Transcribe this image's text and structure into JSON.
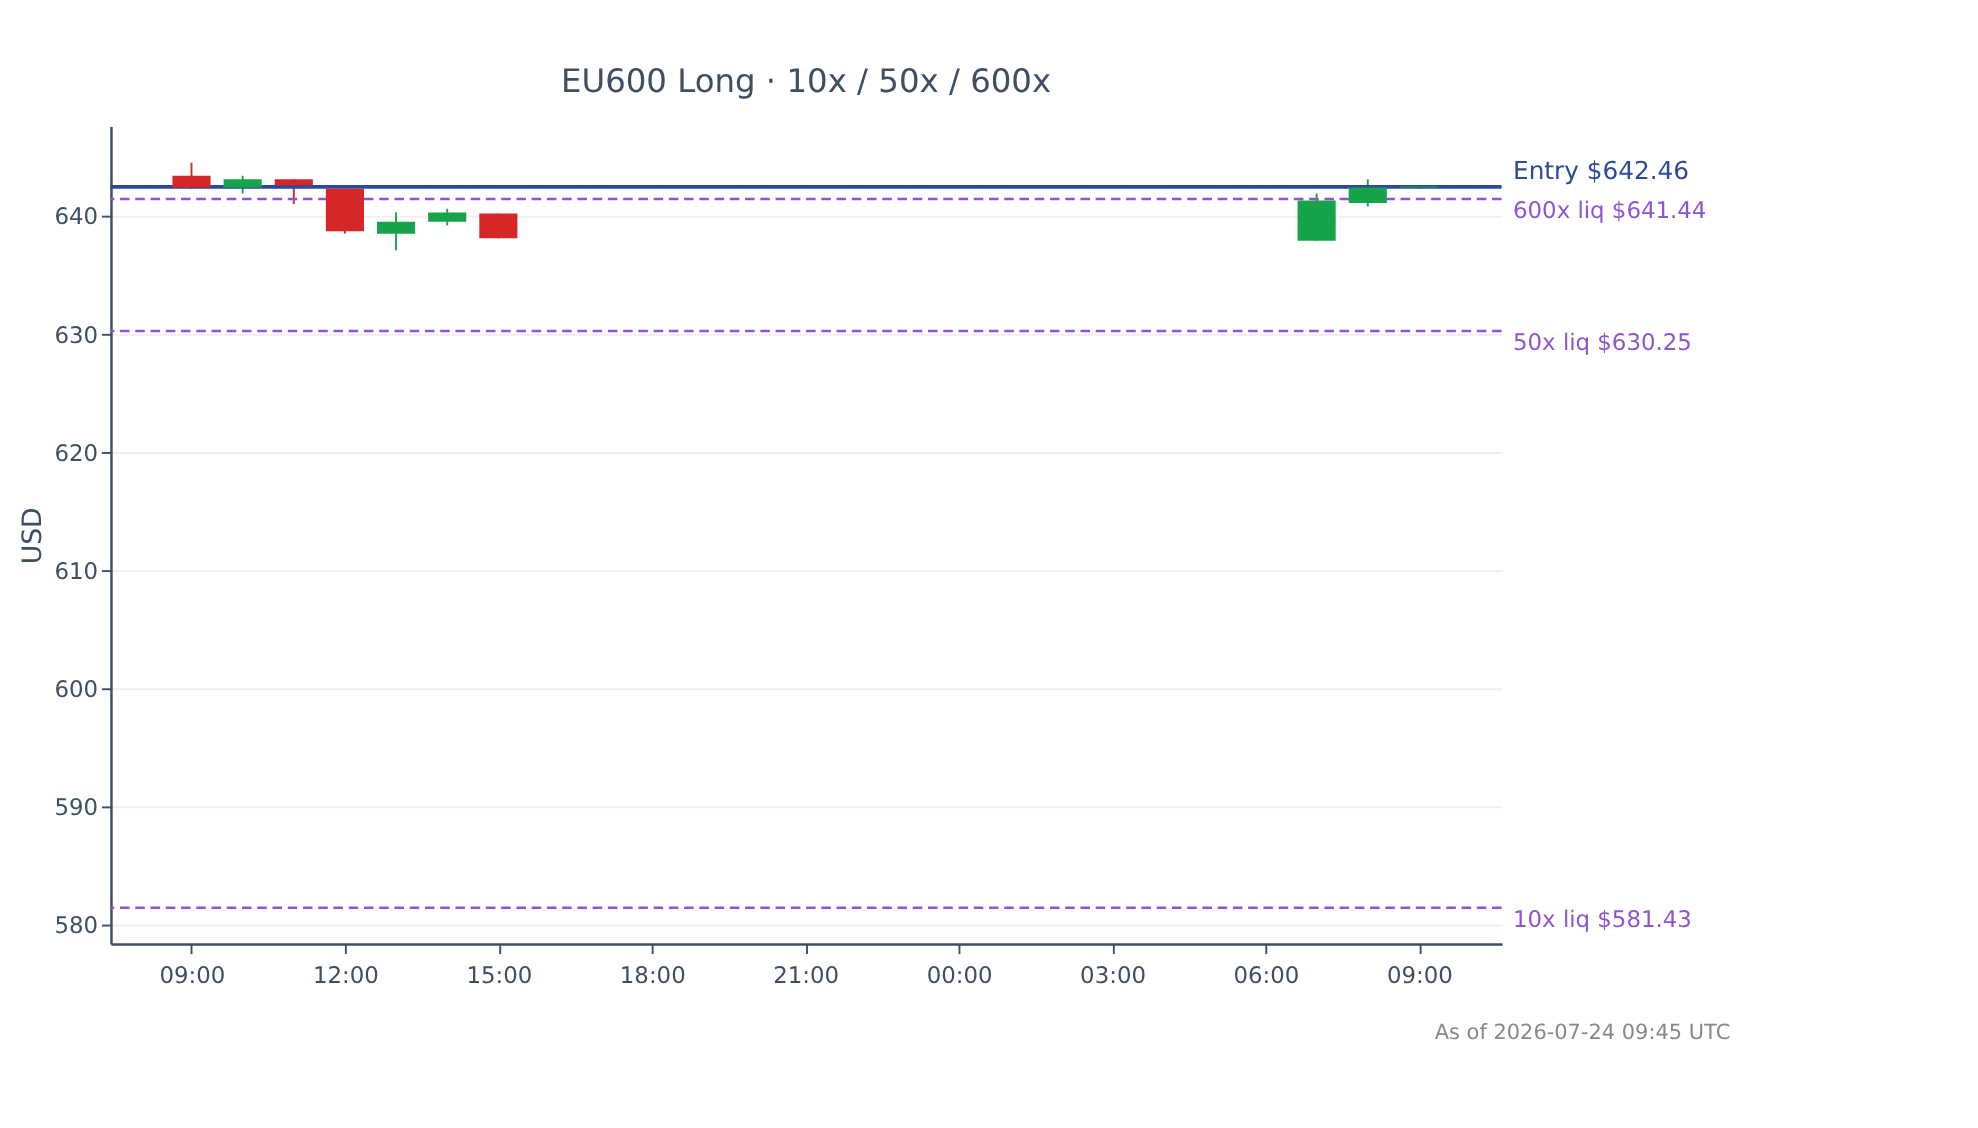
{
  "chart_data": {
    "type": "candlestick",
    "title": "EU600 Long · 10x / 50x / 600x",
    "ylabel": "USD",
    "x": [
      "2026-07-23T09:00",
      "2026-07-23T10:00",
      "2026-07-23T11:00",
      "2026-07-23T12:00",
      "2026-07-23T13:00",
      "2026-07-23T14:00",
      "2026-07-23T15:00",
      "2026-07-24T07:00",
      "2026-07-24T08:00",
      "2026-07-24T09:00"
    ],
    "ohlc": [
      [
        643.4,
        644.5,
        642.3,
        642.4
      ],
      [
        642.4,
        643.4,
        641.9,
        643.1
      ],
      [
        643.1,
        643.1,
        641.0,
        642.6
      ],
      [
        642.3,
        642.3,
        638.5,
        638.7
      ],
      [
        638.5,
        640.3,
        637.1,
        639.5
      ],
      [
        639.5,
        640.6,
        639.2,
        640.3
      ],
      [
        640.2,
        640.2,
        638.1,
        638.1
      ],
      [
        637.9,
        641.9,
        637.9,
        641.3
      ],
      [
        641.1,
        643.1,
        640.8,
        642.4
      ],
      [
        642.4,
        642.6,
        642.3,
        642.5
      ]
    ],
    "colors": [
      "#d62728",
      "#16a34a",
      "#d62728",
      "#d62728",
      "#16a34a",
      "#16a34a",
      "#d62728",
      "#16a34a",
      "#16a34a",
      "#16a34a"
    ],
    "xlim": [
      "2026-07-23T07:25",
      "2026-07-24T10:37"
    ],
    "xticks": [
      {
        "value": "2026-07-23T09:00",
        "label": "09:00"
      },
      {
        "value": "2026-07-23T12:00",
        "label": "12:00"
      },
      {
        "value": "2026-07-23T15:00",
        "label": "15:00"
      },
      {
        "value": "2026-07-23T18:00",
        "label": "18:00"
      },
      {
        "value": "2026-07-23T21:00",
        "label": "21:00"
      },
      {
        "value": "2026-07-24T00:00",
        "label": "00:00"
      },
      {
        "value": "2026-07-24T03:00",
        "label": "03:00"
      },
      {
        "value": "2026-07-24T06:00",
        "label": "06:00"
      },
      {
        "value": "2026-07-24T09:00",
        "label": "09:00"
      }
    ],
    "ylim": [
      578.4,
      647.6
    ],
    "yticks": [
      580,
      590,
      600,
      610,
      620,
      630,
      640
    ],
    "grid": "y",
    "ref_lines": [
      {
        "axis": "y",
        "value": 642.46,
        "label": "Entry $642.46",
        "color": "#2b4a9a",
        "line_style": "solid"
      },
      {
        "axis": "y",
        "value": 641.44,
        "label": "600x liq $641.44",
        "color": "#8e55d0",
        "line_style": "dashed"
      },
      {
        "axis": "y",
        "value": 630.25,
        "label": "50x liq $630.25",
        "color": "#8e55d0",
        "line_style": "dashed"
      },
      {
        "axis": "y",
        "value": 581.43,
        "label": "10x liq $581.43",
        "color": "#8e55d0",
        "line_style": "dashed"
      }
    ],
    "annotations": [
      "As of 2026-07-24 09:45 UTC"
    ]
  }
}
